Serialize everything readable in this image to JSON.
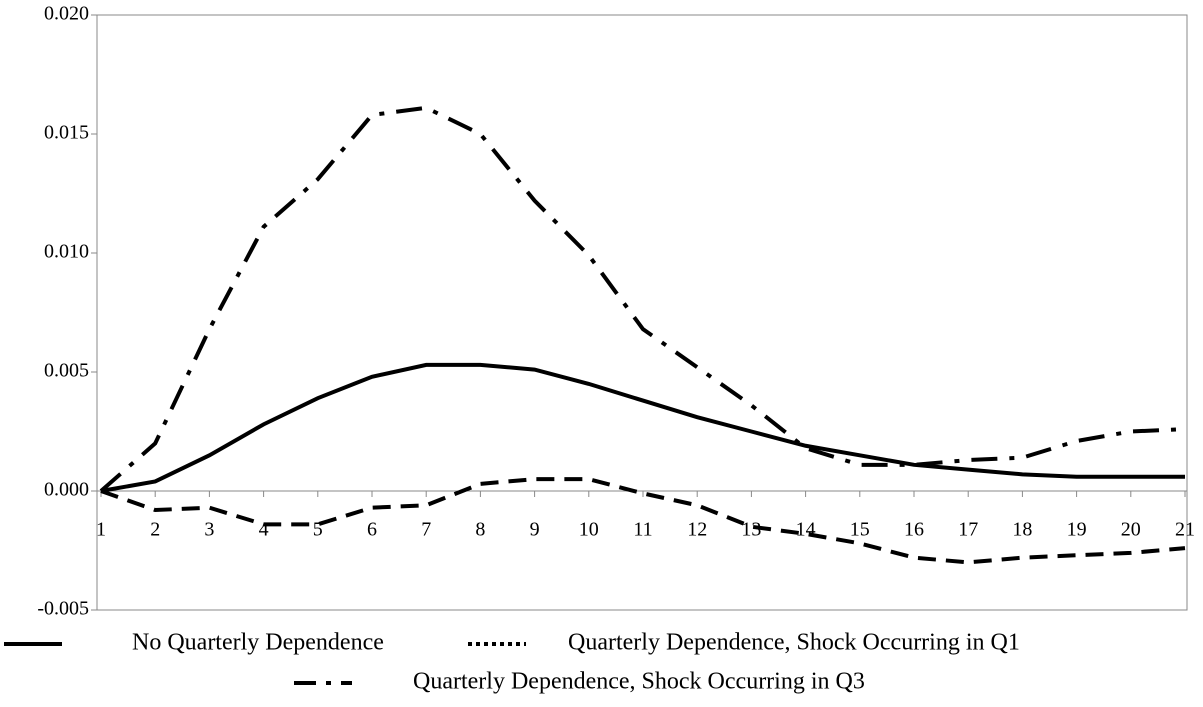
{
  "chart_data": {
    "type": "line",
    "x": [
      1,
      2,
      3,
      4,
      5,
      6,
      7,
      8,
      9,
      10,
      11,
      12,
      13,
      14,
      15,
      16,
      17,
      18,
      19,
      20,
      21
    ],
    "xlim": [
      1,
      21
    ],
    "xticks": [
      1,
      2,
      3,
      4,
      5,
      6,
      7,
      8,
      9,
      10,
      11,
      12,
      13,
      14,
      15,
      16,
      17,
      18,
      19,
      20,
      21
    ],
    "ylim": [
      -0.005,
      0.02
    ],
    "yticks": [
      {
        "value": -0.005,
        "label": "-0.005"
      },
      {
        "value": 0,
        "label": "0.000"
      },
      {
        "value": 0.005,
        "label": "0.005"
      },
      {
        "value": 0.01,
        "label": "0.010"
      },
      {
        "value": 0.015,
        "label": "0.015"
      },
      {
        "value": 0.02,
        "label": "0.020"
      }
    ],
    "series": [
      {
        "name": "No Quarterly Dependence",
        "color": "#000000",
        "style": "solid",
        "values": [
          0,
          0.0004,
          0.0015,
          0.0028,
          0.0039,
          0.0048,
          0.0053,
          0.0053,
          0.0051,
          0.0045,
          0.0038,
          0.0031,
          0.0025,
          0.0019,
          0.0015,
          0.0011,
          0.0009,
          0.0007,
          0.0006,
          0.0006,
          0.0006
        ]
      },
      {
        "name": "Quarterly Dependence, Shock Occurring in Q1",
        "color": "#000000",
        "style": "dotted",
        "values": [
          0,
          -0.0008,
          -0.0007,
          -0.0014,
          -0.0014,
          -0.0007,
          -0.0006,
          0.0003,
          0.0005,
          0.0005,
          -0.0001,
          -0.0006,
          -0.0015,
          -0.0018,
          -0.0022,
          -0.0028,
          -0.003,
          -0.0028,
          -0.0027,
          -0.0026,
          -0.0024
        ]
      },
      {
        "name": "Quarterly Dependence, Shock Occurring in Q3",
        "color": "#000000",
        "style": "dash-dot",
        "values": [
          0,
          0.002,
          0.0068,
          0.0111,
          0.0131,
          0.0158,
          0.0161,
          0.015,
          0.0122,
          0.0099,
          0.0068,
          0.0052,
          0.0036,
          0.0018,
          0.0011,
          0.0011,
          0.0013,
          0.0014,
          0.0021,
          0.0025,
          0.0026
        ]
      }
    ]
  }
}
